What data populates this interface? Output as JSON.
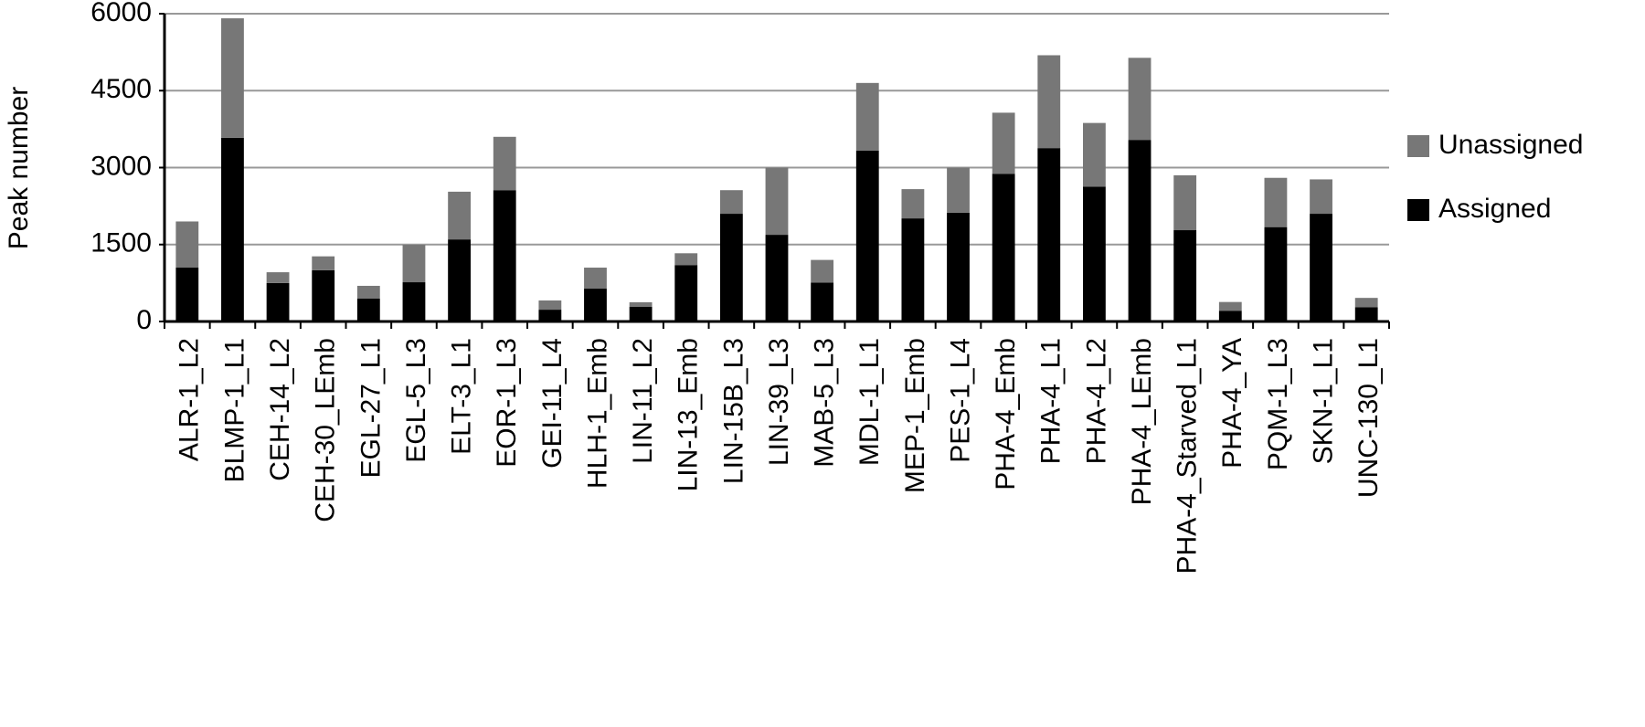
{
  "chart_data": {
    "type": "bar",
    "stacked": true,
    "y_label": "Peak number",
    "categories": [
      "ALR-1_L2",
      "BLMP-1_L1",
      "CEH-14_L2",
      "CEH-30_LEmb",
      "EGL-27_L1",
      "EGL-5_L3",
      "ELT-3_L1",
      "EOR-1_L3",
      "GEI-11_L4",
      "HLH-1_Emb",
      "LIN-11_L2",
      "LIN-13_Emb",
      "LIN-15B_L3",
      "LIN-39_L3",
      "MAB-5_L3",
      "MDL-1_L1",
      "MEP-1_Emb",
      "PES-1_L4",
      "PHA-4_Emb",
      "PHA-4_L1",
      "PHA-4_L2",
      "PHA-4_LEmb",
      "PHA-4_Starved_L1",
      "PHA-4_YA",
      "PQM-1_L3",
      "SKN-1_L1",
      "UNC-130_L1"
    ],
    "series": [
      {
        "name": "Assigned",
        "color": "#000000",
        "values": [
          1050,
          3580,
          750,
          1000,
          445,
          765,
          1600,
          2560,
          230,
          640,
          285,
          1100,
          2100,
          1690,
          760,
          3330,
          2010,
          2120,
          2880,
          3380,
          2630,
          3540,
          1780,
          210,
          1840,
          2100,
          280
        ]
      },
      {
        "name": "Unassigned",
        "color": "#777777",
        "values": [
          900,
          2330,
          210,
          270,
          250,
          730,
          930,
          1040,
          180,
          410,
          90,
          230,
          460,
          1310,
          440,
          1320,
          570,
          880,
          1190,
          1810,
          1240,
          1600,
          1070,
          170,
          960,
          670,
          180
        ]
      }
    ],
    "ylim": [
      0,
      6000
    ],
    "yticks": [
      0,
      1500,
      3000,
      4500,
      6000
    ],
    "grid": true,
    "legend": "right"
  }
}
